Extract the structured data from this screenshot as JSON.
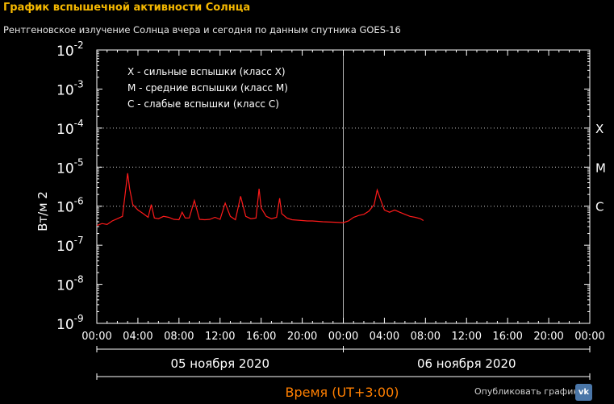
{
  "page": {
    "title": "График вспышечной активности Солнца",
    "subtitle": "Рентгеновское излучение Солнца вчера и сегодня по данным спутника GOES-16",
    "publish_label": "Опубликовать график:",
    "vk_icon_text": "vk"
  },
  "chart_data": {
    "type": "line",
    "title": "",
    "xlabel": "Время (UT+3:00)",
    "ylabel": "Вт/м 2",
    "y_scale": "log",
    "ylim": [
      1e-09,
      0.01
    ],
    "y_ticks": [
      {
        "base": "10",
        "exp": "-2"
      },
      {
        "base": "10",
        "exp": "-3"
      },
      {
        "base": "10",
        "exp": "-4"
      },
      {
        "base": "10",
        "exp": "-5"
      },
      {
        "base": "10",
        "exp": "-6"
      },
      {
        "base": "10",
        "exp": "-7"
      },
      {
        "base": "10",
        "exp": "-8"
      },
      {
        "base": "10",
        "exp": "-9"
      }
    ],
    "xlim_hours": [
      0,
      48
    ],
    "x_tick_labels": [
      "00:00",
      "04:00",
      "08:00",
      "12:00",
      "16:00",
      "20:00",
      "00:00",
      "04:00",
      "08:00",
      "12:00",
      "16:00",
      "20:00",
      "00:00"
    ],
    "day_labels": [
      "05 ноября 2020",
      "06 ноября 2020"
    ],
    "class_labels": [
      {
        "label": "X",
        "flux": 0.0001
      },
      {
        "label": "M",
        "flux": 1e-05
      },
      {
        "label": "C",
        "flux": 1e-06
      }
    ],
    "legend": [
      "X - сильные вспышки (класс X)",
      "M - средние вспышки (класс M)",
      "C - слабые вспышки (класс C)"
    ],
    "grid": "dotted lines at X, M, C levels",
    "colors": {
      "series": "#ff1a1a",
      "title": "#f5b800",
      "xlabel": "#ff7f00",
      "axes": "#ffffff"
    },
    "series": [
      {
        "name": "",
        "x_hours": [
          0,
          0.5,
          1,
          1.5,
          2,
          2.5,
          2.8,
          3.0,
          3.2,
          3.5,
          4,
          4.5,
          5,
          5.3,
          5.6,
          6,
          6.5,
          7,
          7.5,
          8,
          8.3,
          8.6,
          9,
          9.5,
          10,
          10.5,
          11,
          11.5,
          12,
          12.5,
          13,
          13.5,
          14,
          14.5,
          15,
          15.5,
          15.8,
          16,
          16.5,
          17,
          17.5,
          17.8,
          18,
          18.5,
          19,
          19.5,
          20,
          20.5,
          21,
          22,
          23,
          24,
          24.5,
          25,
          25.5,
          26,
          26.5,
          27,
          27.3,
          27.7,
          28,
          28.5,
          29,
          29.5,
          30,
          30.5,
          31,
          31.5,
          31.8
        ],
        "flux": [
          3.2e-07,
          3.6e-07,
          3.4e-07,
          4.2e-07,
          4.8e-07,
          5.5e-07,
          2.5e-06,
          7e-06,
          2.8e-06,
          1.1e-06,
          8e-07,
          6.5e-07,
          5.2e-07,
          1.1e-06,
          5e-07,
          4.8e-07,
          5.5e-07,
          5.2e-07,
          4.6e-07,
          4.5e-07,
          7e-07,
          5e-07,
          5e-07,
          1.4e-06,
          4.6e-07,
          4.5e-07,
          4.6e-07,
          5.2e-07,
          4.6e-07,
          1.2e-06,
          5.5e-07,
          4.5e-07,
          1.8e-06,
          5.5e-07,
          4.8e-07,
          5e-07,
          2.8e-06,
          9e-07,
          5.5e-07,
          4.8e-07,
          5.2e-07,
          1.6e-06,
          6.5e-07,
          5e-07,
          4.5e-07,
          4.4e-07,
          4.3e-07,
          4.2e-07,
          4.2e-07,
          4e-07,
          3.9e-07,
          3.8e-07,
          4.2e-07,
          5.2e-07,
          5.8e-07,
          6.2e-07,
          7.5e-07,
          1.1e-06,
          2.6e-06,
          1.3e-06,
          8e-07,
          7e-07,
          8e-07,
          7e-07,
          6.2e-07,
          5.5e-07,
          5.2e-07,
          4.8e-07,
          4.3e-07
        ]
      }
    ]
  }
}
